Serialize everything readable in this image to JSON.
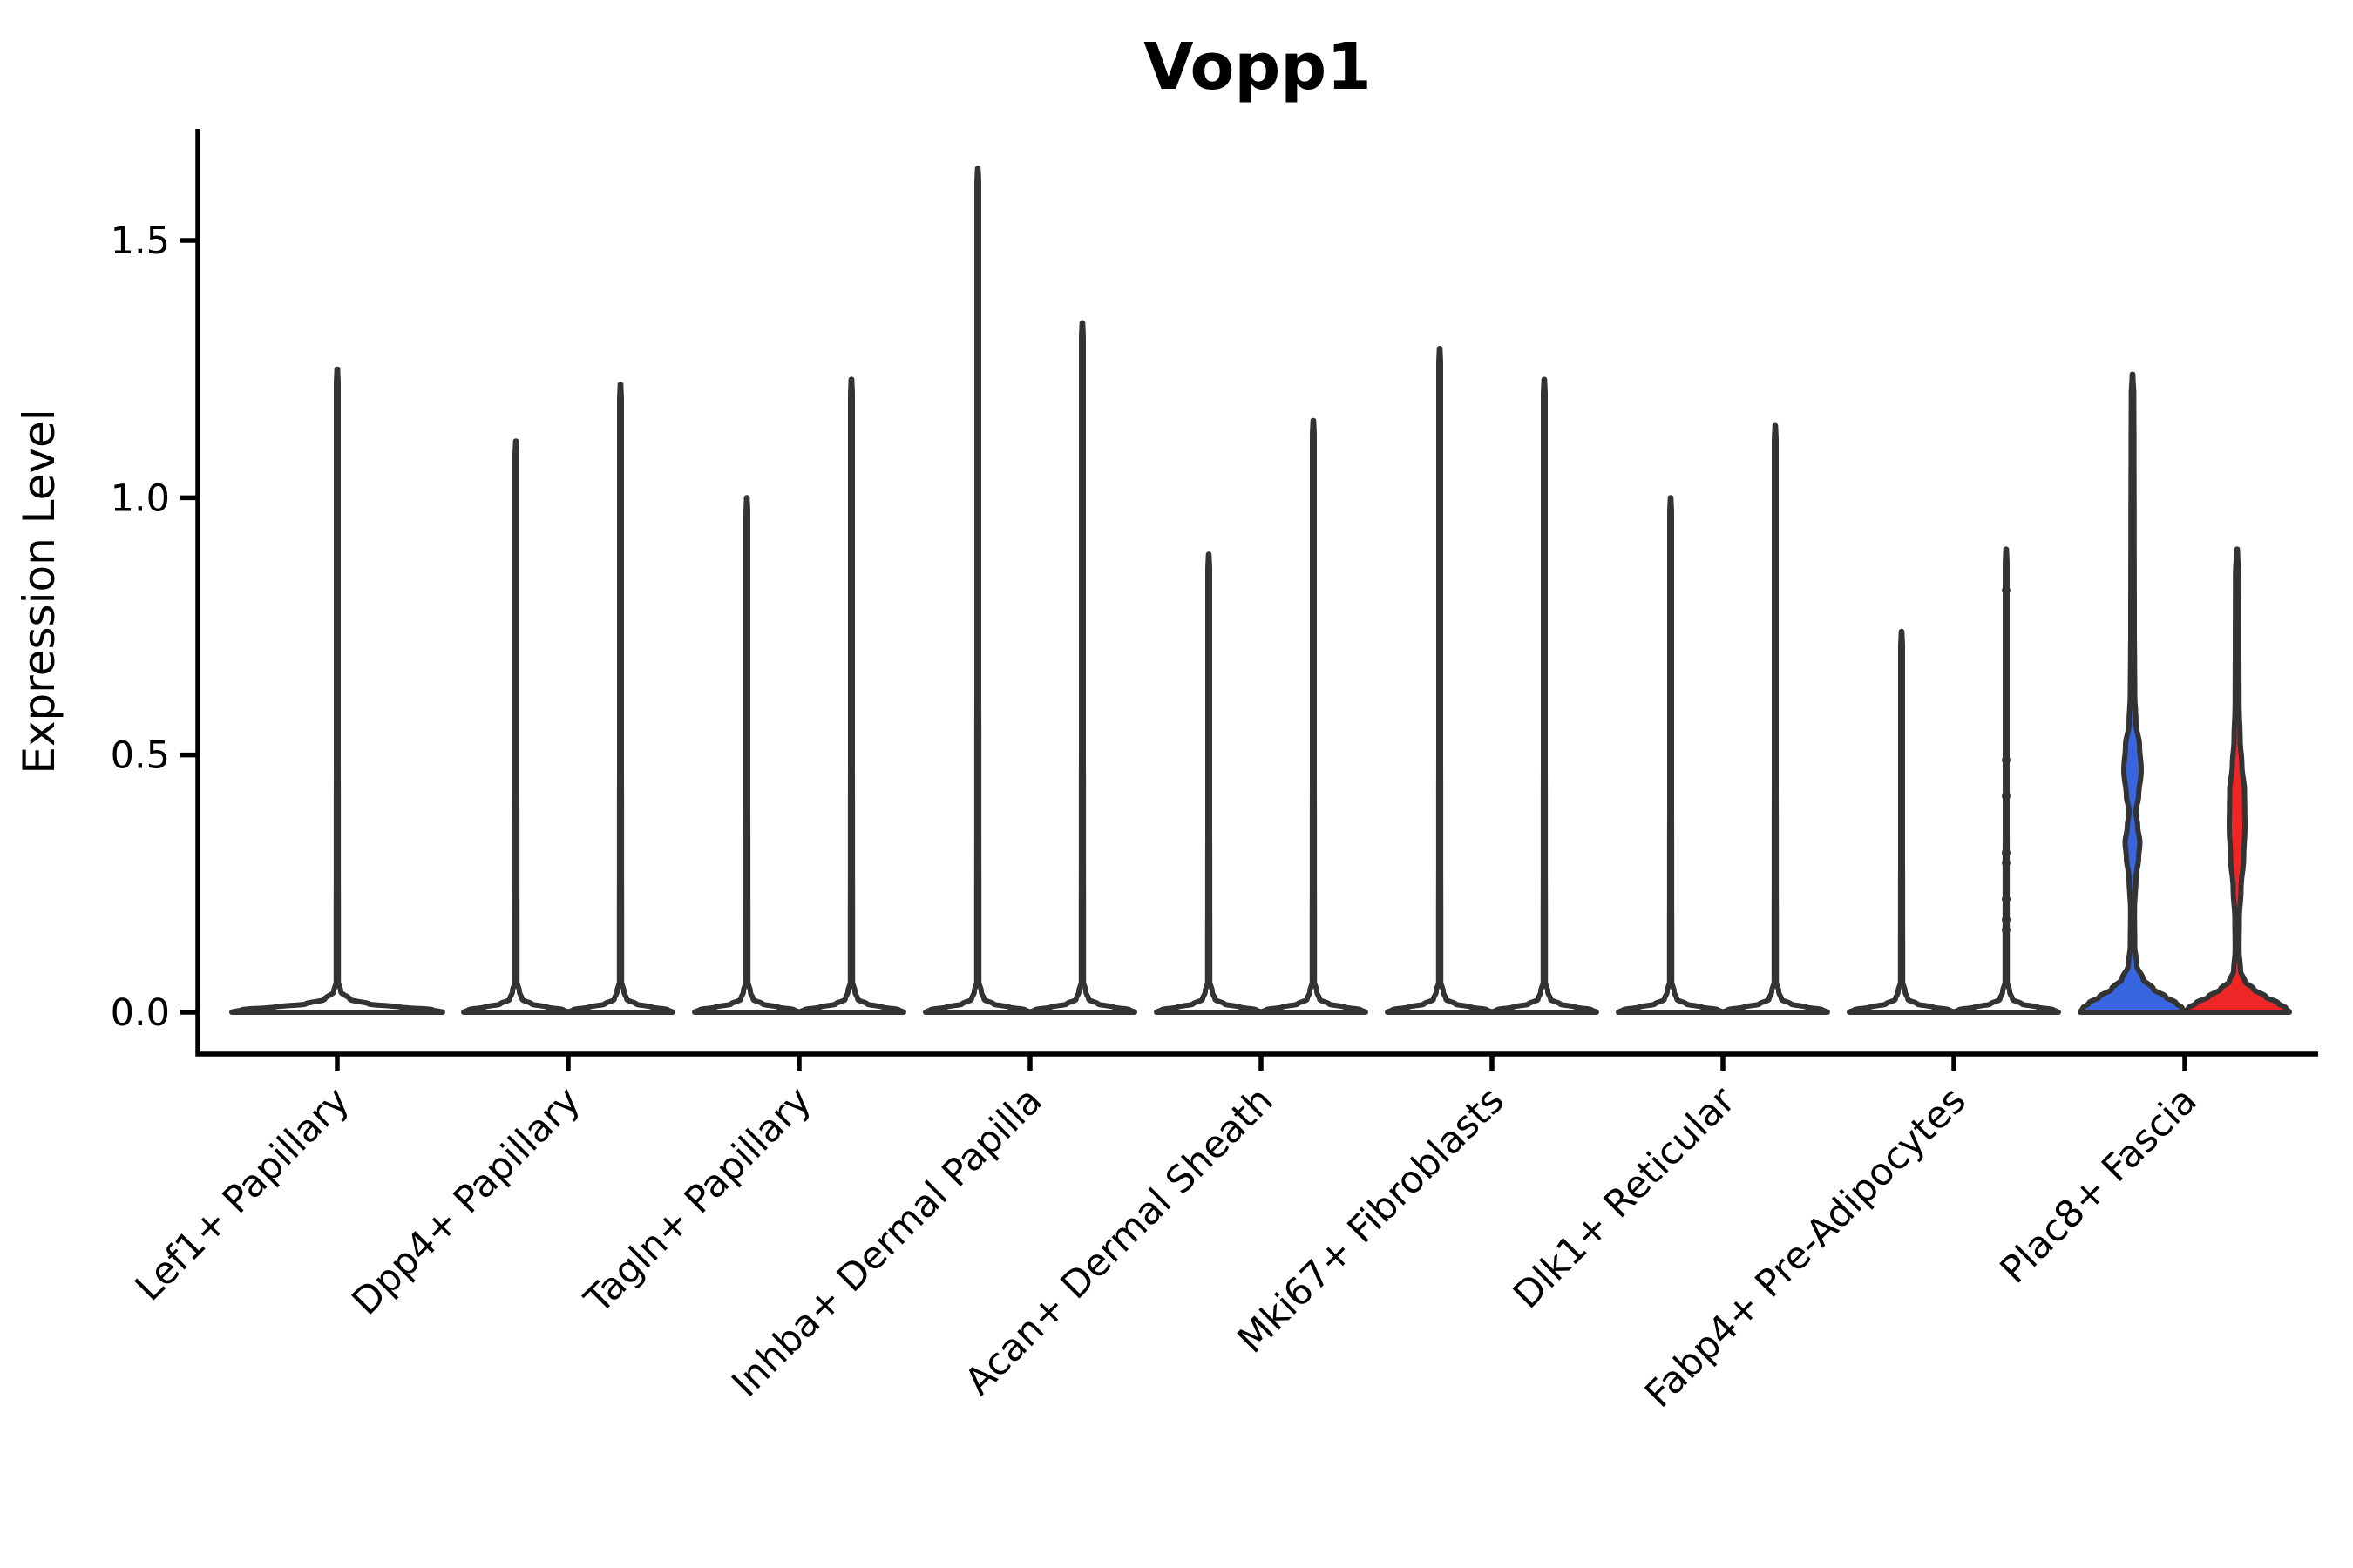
{
  "title": "Vopp1",
  "y_axis": {
    "label": "Expression Level",
    "tick_labels": [
      "0.0",
      "0.5",
      "1.0",
      "1.5"
    ],
    "tick_values": [
      0.0,
      0.5,
      1.0,
      1.5
    ]
  },
  "colors": {
    "background": "#ffffff",
    "axis": "#000000",
    "violin_outline": "#333333",
    "violin_white_fill": "#ffffff",
    "violin_blue_fill": "#3866e0",
    "violin_red_fill": "#ef2626",
    "text": "#000000"
  },
  "chart_data": {
    "type": "violin",
    "title": "Vopp1",
    "xlabel": "",
    "ylabel": "Expression Level",
    "ylim": [
      -0.08,
      1.72
    ],
    "yticks": [
      0.0,
      0.5,
      1.0,
      1.5
    ],
    "grid": false,
    "legend": "none",
    "categories": [
      "Lef1+ Papillary",
      "Dpp4+ Papillary",
      "Tagln+ Papillary",
      "Inhba+ Dermal Papilla",
      "Acan+ Dermal Sheath",
      "Mki67+ Fibroblasts",
      "Dlk1+ Reticular",
      "Fabp4+ Pre-Adipocytes",
      "Plac8+ Fascia"
    ],
    "groups": [
      {
        "category": "Lef1+ Papillary",
        "violins": [
          {
            "name": "violin-1",
            "fill": "#ffffff",
            "offset": 0,
            "half_width": 121,
            "max": 1.25,
            "min": 0.0
          }
        ]
      },
      {
        "category": "Dpp4+ Papillary",
        "violins": [
          {
            "name": "violin-1",
            "fill": "#ffffff",
            "offset": -60,
            "half_width": 60,
            "max": 1.11,
            "min": 0.0
          },
          {
            "name": "violin-2",
            "fill": "#ffffff",
            "offset": 60,
            "half_width": 60,
            "max": 1.22,
            "min": 0.0
          }
        ]
      },
      {
        "category": "Tagln+ Papillary",
        "violins": [
          {
            "name": "violin-1",
            "fill": "#ffffff",
            "offset": -60,
            "half_width": 60,
            "max": 1.0,
            "min": 0.0
          },
          {
            "name": "violin-2",
            "fill": "#ffffff",
            "offset": 60,
            "half_width": 60,
            "max": 1.23,
            "min": 0.0
          }
        ]
      },
      {
        "category": "Inhba+ Dermal Papilla",
        "violins": [
          {
            "name": "violin-1",
            "fill": "#ffffff",
            "offset": -60,
            "half_width": 60,
            "max": 1.64,
            "min": 0.0
          },
          {
            "name": "violin-2",
            "fill": "#ffffff",
            "offset": 60,
            "half_width": 60,
            "max": 1.34,
            "min": 0.0
          }
        ]
      },
      {
        "category": "Acan+ Dermal Sheath",
        "violins": [
          {
            "name": "violin-1",
            "fill": "#ffffff",
            "offset": -60,
            "half_width": 60,
            "max": 0.89,
            "min": 0.0
          },
          {
            "name": "violin-2",
            "fill": "#ffffff",
            "offset": 60,
            "half_width": 60,
            "max": 1.15,
            "min": 0.0
          }
        ]
      },
      {
        "category": "Mki67+ Fibroblasts",
        "violins": [
          {
            "name": "violin-1",
            "fill": "#ffffff",
            "offset": -60,
            "half_width": 60,
            "max": 1.29,
            "min": 0.0
          },
          {
            "name": "violin-2",
            "fill": "#ffffff",
            "offset": 60,
            "half_width": 60,
            "max": 1.23,
            "min": 0.0
          }
        ]
      },
      {
        "category": "Dlk1+ Reticular",
        "violins": [
          {
            "name": "violin-1",
            "fill": "#ffffff",
            "offset": -60,
            "half_width": 60,
            "max": 1.0,
            "min": 0.0
          },
          {
            "name": "violin-2",
            "fill": "#ffffff",
            "offset": 60,
            "half_width": 60,
            "max": 1.14,
            "min": 0.0
          }
        ]
      },
      {
        "category": "Fabp4+ Pre-Adipocytes",
        "violins": [
          {
            "name": "violin-1",
            "fill": "#ffffff",
            "offset": -60,
            "half_width": 60,
            "max": 0.74,
            "min": 0.0,
            "points": [
              0.5,
              0.44,
              0.37,
              0.3,
              0.22,
              0.17
            ],
            "point_radius": 3.5
          },
          {
            "name": "violin-2",
            "fill": "#ffffff",
            "offset": 60,
            "half_width": 60,
            "max": 0.9,
            "min": 0.0,
            "points": [
              0.82,
              0.49,
              0.42,
              0.31,
              0.29,
              0.22,
              0.18,
              0.16
            ],
            "point_radius": 5
          }
        ]
      },
      {
        "category": "Plac8+ Fascia",
        "violins": [
          {
            "name": "violin-1",
            "fill": "#3866e0",
            "offset": -60,
            "half_width": 60,
            "max": 1.24,
            "min": 0.0,
            "profile": [
              [
                0,
                60
              ],
              [
                0.008,
                57
              ],
              [
                0.018,
                50
              ],
              [
                0.03,
                38
              ],
              [
                0.045,
                24
              ],
              [
                0.065,
                12
              ],
              [
                0.09,
                5
              ],
              [
                0.13,
                2.5
              ],
              [
                0.2,
                2.2
              ],
              [
                0.26,
                4
              ],
              [
                0.3,
                7
              ],
              [
                0.33,
                8.5
              ],
              [
                0.36,
                6
              ],
              [
                0.39,
                4
              ],
              [
                0.42,
                7
              ],
              [
                0.47,
                10
              ],
              [
                0.52,
                8
              ],
              [
                0.56,
                4
              ],
              [
                0.62,
                2.5
              ],
              [
                0.75,
                2
              ],
              [
                0.95,
                1.8
              ],
              [
                1.1,
                1.6
              ],
              [
                1.2,
                1.4
              ],
              [
                1.24,
                0.4
              ]
            ]
          },
          {
            "name": "violin-2",
            "fill": "#ef2626",
            "offset": 60,
            "half_width": 60,
            "max": 0.9,
            "min": 0.0,
            "profile": [
              [
                0,
                60
              ],
              [
                0.008,
                56
              ],
              [
                0.018,
                47
              ],
              [
                0.03,
                33
              ],
              [
                0.045,
                19
              ],
              [
                0.06,
                9
              ],
              [
                0.08,
                4
              ],
              [
                0.12,
                2.2
              ],
              [
                0.18,
                2.5
              ],
              [
                0.24,
                4.5
              ],
              [
                0.3,
                7.5
              ],
              [
                0.36,
                9
              ],
              [
                0.43,
                8.5
              ],
              [
                0.48,
                5.5
              ],
              [
                0.53,
                3.5
              ],
              [
                0.6,
                2.2
              ],
              [
                0.72,
                2
              ],
              [
                0.85,
                1.8
              ],
              [
                0.9,
                0.4
              ]
            ]
          }
        ]
      }
    ]
  }
}
